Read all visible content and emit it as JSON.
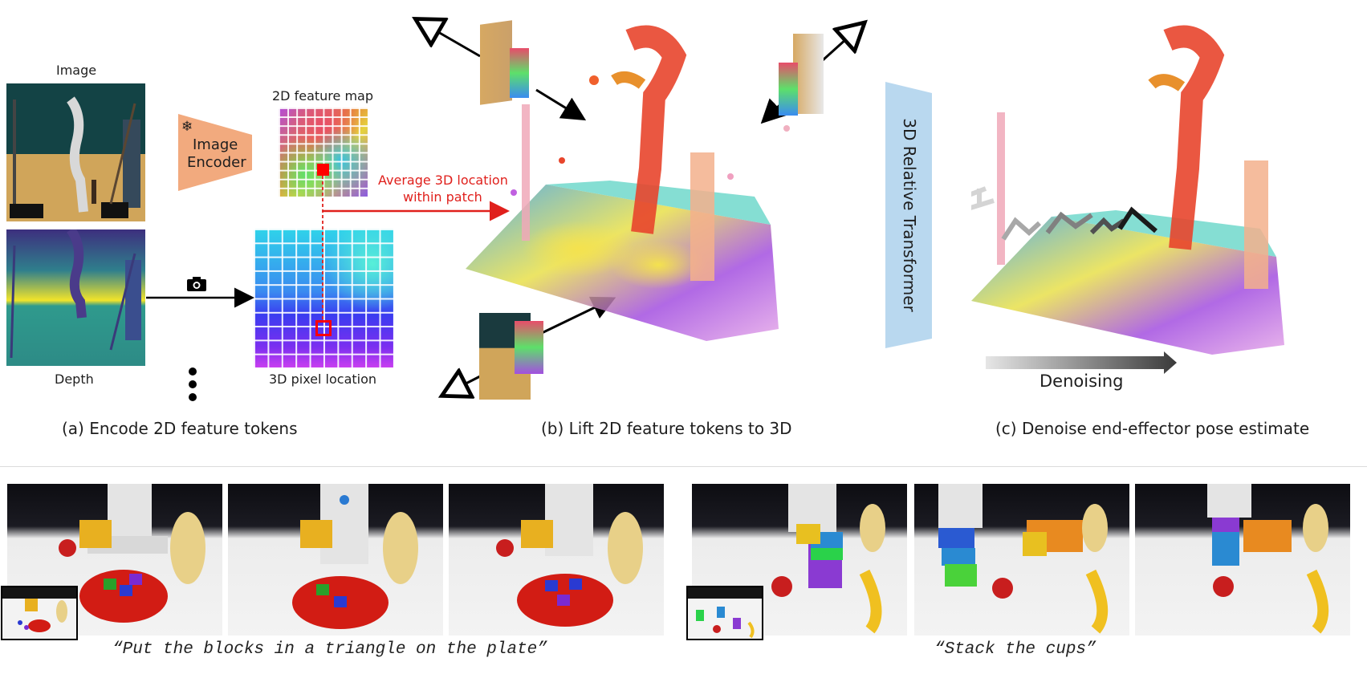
{
  "labels": {
    "image": "Image",
    "depth": "Depth",
    "image_encoder_line1": "Image",
    "image_encoder_line2": "Encoder",
    "feature_map": "2D feature map",
    "pixel_location": "3D pixel location",
    "average_line1": "Average 3D location",
    "average_line2": "within patch",
    "transformer": "3D Relative Transformer",
    "denoising": "Denoising"
  },
  "captions": {
    "a": "(a) Encode 2D feature tokens",
    "b": "(b) Lift 2D feature tokens to 3D",
    "c": "(c) Denoise end-effector pose estimate"
  },
  "tasks": {
    "task1": "“Put the blocks in a triangle on the plate”",
    "task2": "“Stack the cups”"
  },
  "icons": {
    "snowflake": "❄",
    "camera": "camera-icon"
  },
  "colors": {
    "encoder": "#f2aa7e",
    "transformer": "#b9d8ef",
    "arrow_red": "#e0201c"
  }
}
